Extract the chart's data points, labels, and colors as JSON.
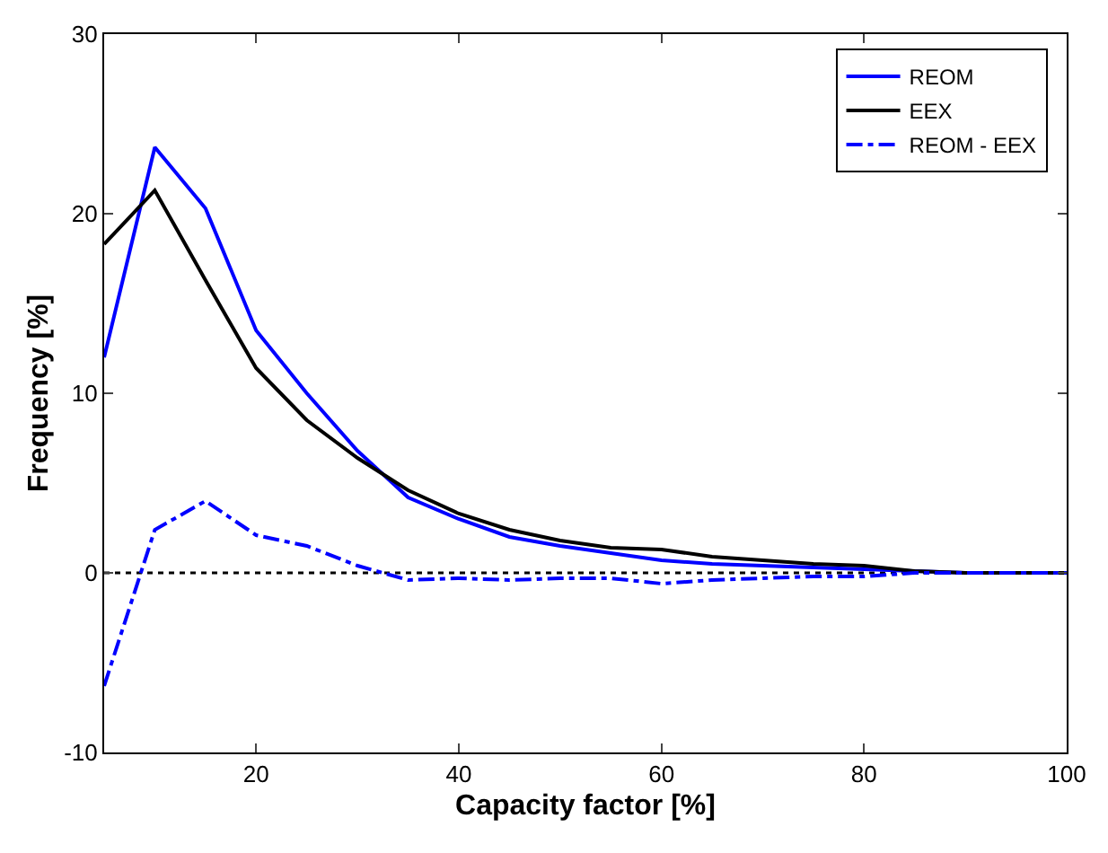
{
  "chart_data": {
    "type": "line",
    "xlabel": "Capacity factor [%]",
    "ylabel": "Frequency [%]",
    "x": [
      5,
      10,
      15,
      20,
      25,
      30,
      35,
      40,
      45,
      50,
      55,
      60,
      65,
      70,
      75,
      80,
      85,
      90,
      95,
      100
    ],
    "series": [
      {
        "name": "REOM",
        "color": "#0000ff",
        "values": [
          12,
          23.7,
          20.3,
          13.5,
          10,
          6.8,
          4.2,
          3,
          2,
          1.5,
          1.1,
          0.7,
          0.5,
          0.4,
          0.3,
          0.2,
          0.1,
          0,
          0,
          0
        ]
      },
      {
        "name": "EEX",
        "color": "#000000",
        "values": [
          18.3,
          21.3,
          16.3,
          11.4,
          8.5,
          6.4,
          4.6,
          3.3,
          2.4,
          1.8,
          1.4,
          1.3,
          0.9,
          0.7,
          0.5,
          0.4,
          0.1,
          0,
          0,
          0
        ]
      },
      {
        "name": "REOM - EEX",
        "color": "#0000ff",
        "line_style": "dashed",
        "values": [
          -6.3,
          2.4,
          4,
          2.1,
          1.5,
          0.4,
          -0.4,
          -0.3,
          -0.4,
          -0.3,
          -0.3,
          -0.6,
          -0.4,
          -0.3,
          -0.2,
          -0.2,
          0,
          0,
          0,
          0
        ]
      }
    ],
    "xlim": [
      5,
      100
    ],
    "xticks": [
      20,
      40,
      60,
      80,
      100
    ],
    "ylim": [
      -10,
      30
    ],
    "yticks": [
      -10,
      0,
      10,
      20,
      30
    ],
    "ref_lines": [
      {
        "axis": "y",
        "value": 0,
        "color": "#000000",
        "line_style": "dotted"
      }
    ],
    "legend": "top right",
    "grid": false,
    "marker": "none"
  }
}
